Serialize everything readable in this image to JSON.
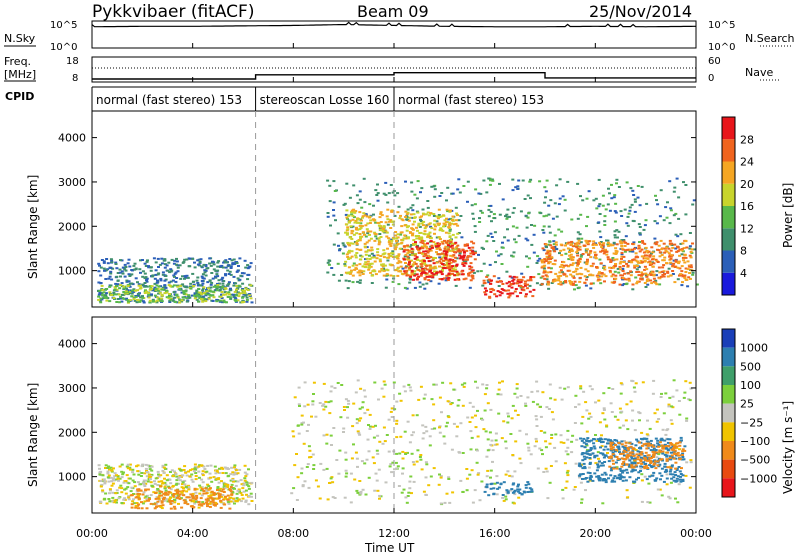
{
  "header": {
    "radar": "Pykkvibaer (fitACF)",
    "beam": "Beam 09",
    "date": "25/Nov/2014"
  },
  "noise_panel": {
    "left_label": "N.Sky",
    "right_label": "N.Search",
    "left_ticks": [
      "10^5",
      "10^0"
    ],
    "right_ticks": [
      "10^5",
      "10^0"
    ]
  },
  "freq_panel": {
    "left_label_1": "Freq.",
    "left_label_2": "[MHz]",
    "right_label": "Nave",
    "left_ticks": [
      "18",
      "8"
    ],
    "right_ticks": [
      "60",
      "0"
    ]
  },
  "cpid": {
    "label": "CPID",
    "segments": [
      {
        "text": "normal (fast stereo) 153",
        "start_h": 0.0
      },
      {
        "text": "stereoscan Losse 160",
        "start_h": 6.5
      },
      {
        "text": "normal (fast stereo) 153",
        "start_h": 12.0
      }
    ]
  },
  "axes": {
    "ylabel": "Slant Range [km]",
    "xlabel": "Time UT",
    "y_ticks": [
      "1000",
      "2000",
      "3000",
      "4000"
    ],
    "x_ticks": [
      "00:00",
      "04:00",
      "08:00",
      "12:00",
      "16:00",
      "20:00",
      "00:00"
    ]
  },
  "power_colorbar": {
    "label": "Power [dB]",
    "ticks": [
      "4",
      "8",
      "12",
      "16",
      "20",
      "24",
      "28"
    ],
    "colors": [
      "#1a1adc",
      "#2b5fb8",
      "#3f8f6c",
      "#58b84a",
      "#c8d42c",
      "#f5a623",
      "#f0641e",
      "#e8161b"
    ]
  },
  "velocity_colorbar": {
    "label": "Velocity [m s⁻¹]",
    "ticks": [
      "1000",
      "500",
      "100",
      "25",
      "−25",
      "−100",
      "−500",
      "−1000"
    ],
    "colors": [
      "#1a3fb8",
      "#2d7fb0",
      "#3f9f6a",
      "#7ccf3c",
      "#c4c4be",
      "#f0c400",
      "#f08a1a",
      "#e84a10",
      "#e8161b"
    ]
  },
  "chart_data": {
    "type": "heatmap",
    "x_range_hours": [
      0,
      24
    ],
    "y_range_km": [
      180,
      4600
    ],
    "x": [
      "00:00",
      "04:00",
      "08:00",
      "12:00",
      "16:00",
      "20:00",
      "00:00"
    ],
    "noise_sky_log10": [
      4.6,
      4.7,
      4.7,
      4.8,
      4.9,
      5.1,
      4.9,
      4.7,
      4.6,
      4.6,
      4.7,
      4.6,
      4.7
    ],
    "frequency_MHz": [
      {
        "from_h": 0,
        "to_h": 6.5,
        "value": 8.5
      },
      {
        "from_h": 6.5,
        "to_h": 12,
        "value": 10.5
      },
      {
        "from_h": 12,
        "to_h": 18,
        "value": 11.5
      },
      {
        "from_h": 18,
        "to_h": 24,
        "value": 9.0
      }
    ],
    "nave_approx": 33,
    "power_regions": [
      {
        "from_h": 0.2,
        "to_h": 6.3,
        "range_km": [
          300,
          1300
        ],
        "dB": 8
      },
      {
        "from_h": 0.2,
        "to_h": 6.3,
        "range_km": [
          300,
          700
        ],
        "dB": 16
      },
      {
        "from_h": 9.3,
        "to_h": 24,
        "range_km": [
          600,
          3100
        ],
        "dB": 10
      },
      {
        "from_h": 10.0,
        "to_h": 14.5,
        "range_km": [
          900,
          2400
        ],
        "dB": 20
      },
      {
        "from_h": 12.3,
        "to_h": 15.2,
        "range_km": [
          800,
          1700
        ],
        "dB": 28
      },
      {
        "from_h": 15.5,
        "to_h": 17.5,
        "range_km": [
          400,
          900
        ],
        "dB": 28
      },
      {
        "from_h": 17.8,
        "to_h": 23.8,
        "range_km": [
          700,
          1700
        ],
        "dB": 24
      }
    ],
    "velocity_regions": [
      {
        "from_h": 0.2,
        "to_h": 6.3,
        "range_km": [
          400,
          1300
        ],
        "m_s": 0
      },
      {
        "from_h": 1.5,
        "to_h": 5.5,
        "range_km": [
          300,
          800
        ],
        "m_s": -100
      },
      {
        "from_h": 7.8,
        "to_h": 23.8,
        "range_km": [
          400,
          3200
        ],
        "m_s": 0
      },
      {
        "from_h": 15.5,
        "to_h": 17.5,
        "range_km": [
          600,
          900
        ],
        "m_s": 500
      },
      {
        "from_h": 19.3,
        "to_h": 23.5,
        "range_km": [
          900,
          1900
        ],
        "m_s": 500
      },
      {
        "from_h": 20.5,
        "to_h": 23.5,
        "range_km": [
          1200,
          1800
        ],
        "m_s": -200
      }
    ]
  }
}
